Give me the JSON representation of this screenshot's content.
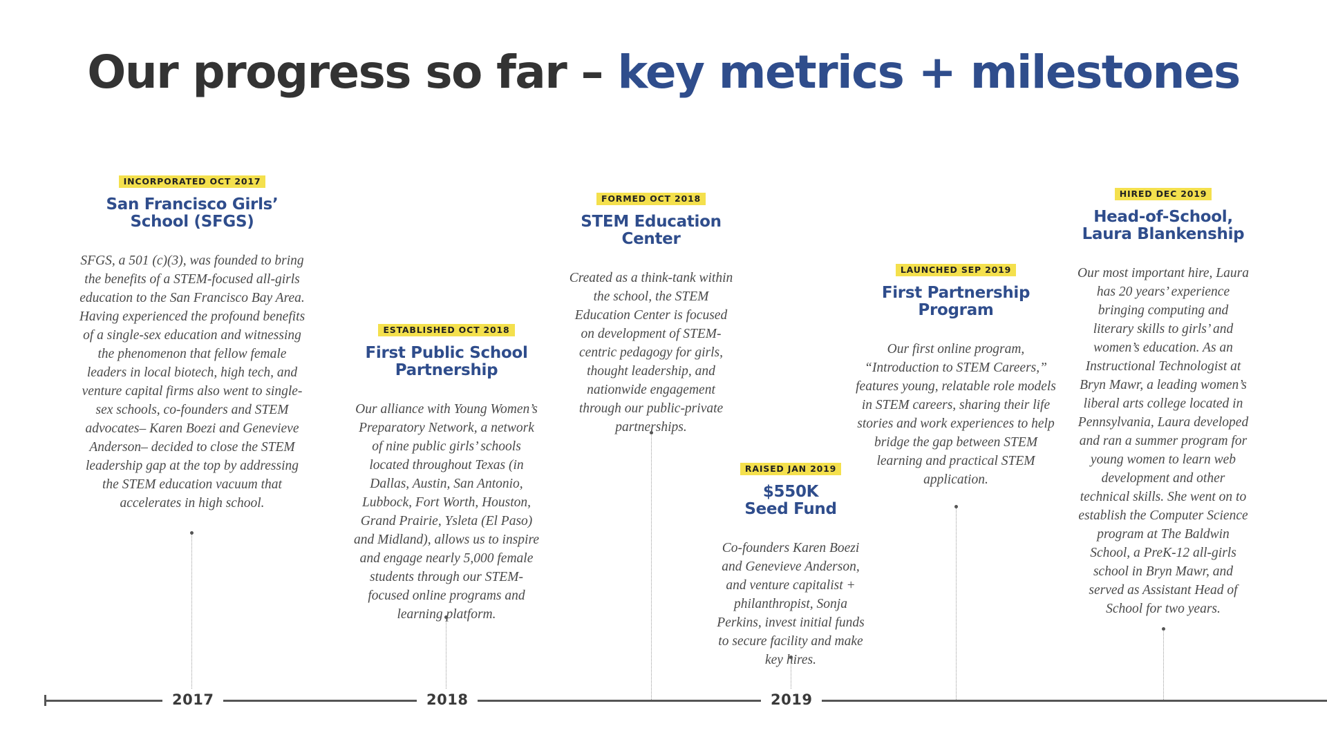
{
  "title": {
    "lead": "Our progress so far – ",
    "accent": "key metrics + milestones"
  },
  "milestones": [
    {
      "badge": "INCORPORATED OCT 2017",
      "title_line1": "San Francisco Girls’",
      "title_line2": "School (SFGS)",
      "description": "SFGS, a 501 (c)(3), was founded to bring the benefits of a STEM-focused all-girls education to the San Francisco Bay Area. Having experienced the profound benefits of a single-sex education and witnessing the phenomenon that fellow female leaders in local biotech, high tech, and venture capital firms also went to single-sex schools, co-founders and STEM advocates– Karen Boezi and Genevieve Anderson– decided to close the STEM leadership gap at the top by addressing the STEM education vacuum that accelerates in high school."
    },
    {
      "badge": "ESTABLISHED OCT 2018",
      "title_line1": "First Public School",
      "title_line2": "Partnership",
      "description": "Our alliance with Young Women’s Preparatory Network, a network of nine public girls’ schools located throughout Texas (in Dallas, Austin, San Antonio, Lubbock, Fort Worth, Houston, Grand Prairie, Ysleta (El Paso) and Midland), allows us to inspire and engage nearly 5,000 female students through our STEM-focused online programs and learning platform."
    },
    {
      "badge": "FORMED OCT 2018",
      "title_line1": "STEM Education",
      "title_line2": "Center",
      "description": "Created as a think-tank within the school, the STEM Education Center is focused on development of STEM-centric pedagogy for girls, thought leadership, and nationwide engagement through our public-private partnerships."
    },
    {
      "badge": "RAISED JAN 2019",
      "title_line1": "$550K",
      "title_line2": "Seed Fund",
      "description": "Co-founders Karen Boezi and Genevieve Anderson, and venture capitalist + philanthropist, Sonja Perkins, invest initial funds to secure facility and make key hires."
    },
    {
      "badge": "LAUNCHED SEP 2019",
      "title_line1": "First Partnership",
      "title_line2": "Program",
      "description": "Our first online program, “Introduction to STEM Careers,” features young, relatable role models in STEM careers, sharing their life stories and work experiences to help bridge the gap between STEM learning and practical STEM application."
    },
    {
      "badge": "HIRED DEC 2019",
      "title_line1": "Head-of-School,",
      "title_line2": "Laura Blankenship",
      "description": "Our most important hire, Laura has 20 years’ experience bringing computing and literary skills to girls’ and women’s education. As an Instructional Technologist at Bryn Mawr, a leading women’s liberal arts college located in Pennsylvania, Laura developed and ran a summer program for young women to learn web development and other technical skills. She went on to establish the Computer Science program at The Baldwin School, a PreK-12 all-girls school in Bryn Mawr, and served as Assistant Head of School for two years."
    }
  ],
  "timeline": {
    "years": [
      "2017",
      "2018",
      "2019"
    ]
  },
  "colors": {
    "accent": "#2f4d8c",
    "badge": "#f4e04d",
    "text": "#333333"
  }
}
